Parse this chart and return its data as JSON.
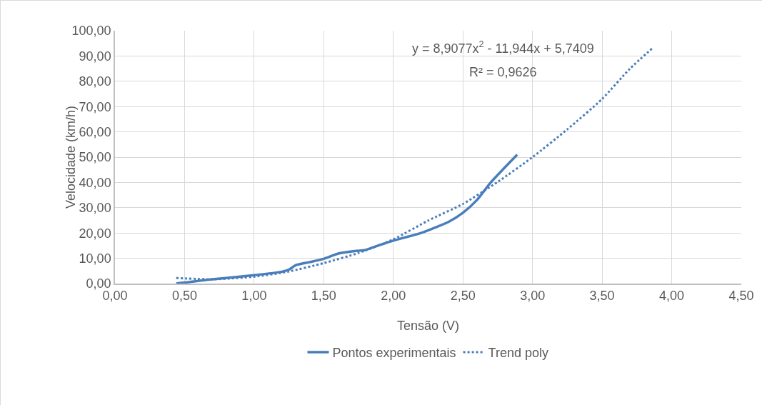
{
  "chart_data": {
    "type": "line",
    "xlabel": "Tensão (V)",
    "ylabel": "Velocidade (km/h)",
    "xlim": [
      0,
      4.5
    ],
    "ylim": [
      0,
      100
    ],
    "xticks": [
      {
        "value": 0,
        "label": "0,00"
      },
      {
        "value": 0.5,
        "label": "0,50"
      },
      {
        "value": 1,
        "label": "1,00"
      },
      {
        "value": 1.5,
        "label": "1,50"
      },
      {
        "value": 2,
        "label": "2,00"
      },
      {
        "value": 2.5,
        "label": "2,50"
      },
      {
        "value": 3,
        "label": "3,00"
      },
      {
        "value": 3.5,
        "label": "3,50"
      },
      {
        "value": 4,
        "label": "4,00"
      },
      {
        "value": 4.5,
        "label": "4,50"
      }
    ],
    "yticks": [
      {
        "value": 0,
        "label": "0,00"
      },
      {
        "value": 10,
        "label": "10,00"
      },
      {
        "value": 20,
        "label": "20,00"
      },
      {
        "value": 30,
        "label": "30,00"
      },
      {
        "value": 40,
        "label": "40,00"
      },
      {
        "value": 50,
        "label": "50,00"
      },
      {
        "value": 60,
        "label": "60,00"
      },
      {
        "value": 70,
        "label": "70,00"
      },
      {
        "value": 80,
        "label": "80,00"
      },
      {
        "value": 90,
        "label": "90,00"
      },
      {
        "value": 100,
        "label": "100,00"
      }
    ],
    "grid": true,
    "legend": "bottom",
    "marker": "none",
    "series": [
      {
        "name": "Pontos experimentais",
        "color": "#4a7ebb",
        "line_style": "solid",
        "x": [
          0.44,
          0.7,
          1.0,
          1.2,
          1.25,
          1.3,
          1.4,
          1.5,
          1.6,
          1.7,
          1.8,
          1.9,
          2.0,
          2.2,
          2.4,
          2.5,
          2.6,
          2.7,
          2.89
        ],
        "values": [
          0,
          1.7,
          3.3,
          4.7,
          5.5,
          7.3,
          8.5,
          9.8,
          11.8,
          12.7,
          13.3,
          15.2,
          17,
          20,
          24.5,
          28,
          33,
          40,
          51
        ]
      },
      {
        "name": "Trend poly",
        "color": "#4a7ebb",
        "line_style": "dotted",
        "x": [
          0.44,
          0.7,
          1.0,
          1.25,
          1.5,
          1.75,
          2.0,
          2.25,
          2.5,
          2.75,
          3.0,
          3.25,
          3.5,
          3.7,
          3.87
        ],
        "values": [
          2.2,
          1.7,
          2.7,
          4.8,
          8.1,
          12.1,
          17.5,
          24.9,
          31.5,
          40.2,
          50,
          61,
          73,
          85,
          93.5
        ]
      }
    ],
    "annotations": [
      "y = 8,9077x$^{2}$ - 11,944x + 5,7409",
      "R² = 0,9626"
    ]
  }
}
